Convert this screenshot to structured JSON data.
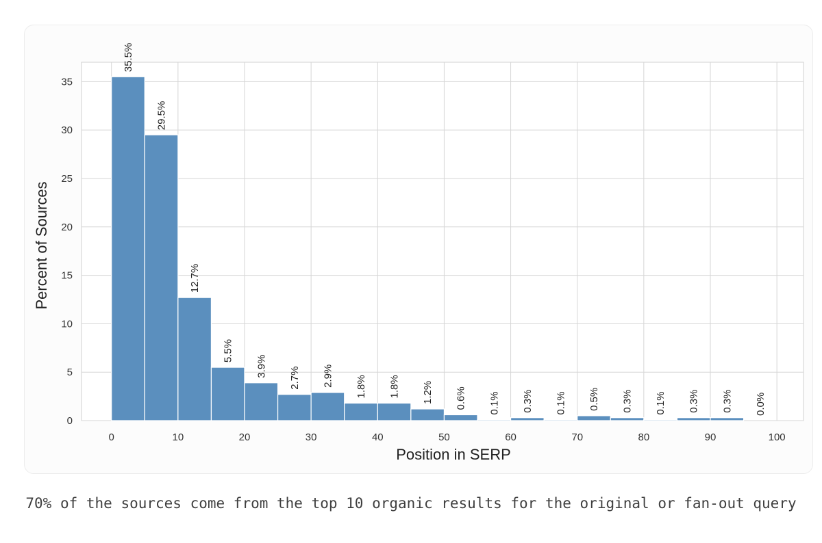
{
  "chart_data": {
    "type": "bar",
    "xlabel": "Position in SERP",
    "ylabel": "Percent of Sources",
    "xlim": [
      -4.5,
      104
    ],
    "ylim": [
      0,
      37
    ],
    "x_ticks": [
      0,
      10,
      20,
      30,
      40,
      50,
      60,
      70,
      80,
      90,
      100
    ],
    "y_ticks": [
      0,
      5,
      10,
      15,
      20,
      25,
      30,
      35
    ],
    "bin_width": 5,
    "bins": [
      {
        "start": 0,
        "end": 5,
        "value": 35.5,
        "label": "35.5%"
      },
      {
        "start": 5,
        "end": 10,
        "value": 29.5,
        "label": "29.5%"
      },
      {
        "start": 10,
        "end": 15,
        "value": 12.7,
        "label": "12.7%"
      },
      {
        "start": 15,
        "end": 20,
        "value": 5.5,
        "label": "5.5%"
      },
      {
        "start": 20,
        "end": 25,
        "value": 3.9,
        "label": "3.9%"
      },
      {
        "start": 25,
        "end": 30,
        "value": 2.7,
        "label": "2.7%"
      },
      {
        "start": 30,
        "end": 35,
        "value": 2.9,
        "label": "2.9%"
      },
      {
        "start": 35,
        "end": 40,
        "value": 1.8,
        "label": "1.8%"
      },
      {
        "start": 40,
        "end": 45,
        "value": 1.8,
        "label": "1.8%"
      },
      {
        "start": 45,
        "end": 50,
        "value": 1.2,
        "label": "1.2%"
      },
      {
        "start": 50,
        "end": 55,
        "value": 0.6,
        "label": "0.6%"
      },
      {
        "start": 55,
        "end": 60,
        "value": 0.1,
        "label": "0.1%"
      },
      {
        "start": 60,
        "end": 65,
        "value": 0.3,
        "label": "0.3%"
      },
      {
        "start": 65,
        "end": 70,
        "value": 0.1,
        "label": "0.1%"
      },
      {
        "start": 70,
        "end": 75,
        "value": 0.5,
        "label": "0.5%"
      },
      {
        "start": 75,
        "end": 80,
        "value": 0.3,
        "label": "0.3%"
      },
      {
        "start": 80,
        "end": 85,
        "value": 0.1,
        "label": "0.1%"
      },
      {
        "start": 85,
        "end": 90,
        "value": 0.3,
        "label": "0.3%"
      },
      {
        "start": 90,
        "end": 95,
        "value": 0.3,
        "label": "0.3%"
      },
      {
        "start": 95,
        "end": 100,
        "value": 0.0,
        "label": "0.0%"
      }
    ],
    "grid": true,
    "bar_color": "#5b8fbe"
  },
  "caption": "70% of the sources come from the top 10 organic results for the original or fan-out query"
}
